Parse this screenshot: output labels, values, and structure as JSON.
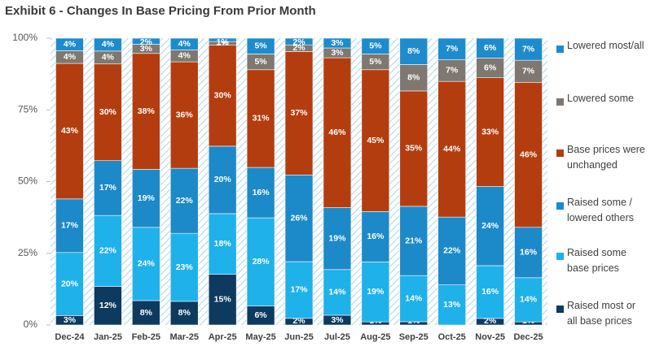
{
  "chart_data": {
    "type": "stacked_percent_bar",
    "title": "Exhibit 6 - Changes In Base Pricing From Prior Month",
    "normalize": true,
    "categories": [
      "Dec-24",
      "Jan-25",
      "Feb-25",
      "Mar-25",
      "Apr-25",
      "May-25",
      "Jun-25",
      "Jul-25",
      "Aug-25",
      "Sep-25",
      "Oct-25",
      "Nov-25",
      "Dec-25"
    ],
    "series": [
      {
        "name": "Raised most or all base prices",
        "color": "#0e3a5f",
        "values": [
          3,
          12,
          8,
          8,
          15,
          6,
          2,
          3,
          1,
          1,
          0,
          2,
          1
        ],
        "value_labels": [
          "3%",
          "12%",
          "8%",
          "8%",
          "15%",
          "6%",
          "2%",
          "3%",
          "1%",
          "1%",
          "0%",
          "2%",
          "1%"
        ]
      },
      {
        "name": "Raised some base prices",
        "color": "#1fb1ea",
        "values": [
          20,
          22,
          24,
          23,
          18,
          28,
          17,
          14,
          19,
          14,
          13,
          16,
          14
        ],
        "value_labels": [
          "20%",
          "22%",
          "24%",
          "23%",
          "18%",
          "28%",
          "17%",
          "14%",
          "19%",
          "14%",
          "13%",
          "16%",
          "14%"
        ]
      },
      {
        "name": "Raised some / lowered others",
        "color": "#1c89c9",
        "values": [
          17,
          17,
          19,
          22,
          20,
          16,
          26,
          19,
          16,
          21,
          22,
          24,
          16
        ],
        "value_labels": [
          "17%",
          "17%",
          "19%",
          "22%",
          "20%",
          "16%",
          "26%",
          "19%",
          "16%",
          "21%",
          "22%",
          "24%",
          "16%"
        ]
      },
      {
        "name": "Base prices were unchanged",
        "color": "#b43d0f",
        "values": [
          43,
          30,
          38,
          36,
          30,
          31,
          37,
          46,
          45,
          35,
          44,
          33,
          46
        ],
        "value_labels": [
          "43%",
          "30%",
          "38%",
          "36%",
          "30%",
          "31%",
          "37%",
          "46%",
          "45%",
          "35%",
          "44%",
          "33%",
          "46%"
        ]
      },
      {
        "name": "Lowered some",
        "color": "#7e7870",
        "values": [
          4,
          4,
          3,
          4,
          1,
          5,
          2,
          3,
          5,
          8,
          7,
          6,
          7
        ],
        "value_labels": [
          "4%",
          "4%",
          "3%",
          "4%",
          "1%",
          "5%",
          "2%",
          "3%",
          "5%",
          "8%",
          "7%",
          "6%",
          "7%"
        ]
      },
      {
        "name": "Lowered most/all",
        "color": "#1e8ccc",
        "values": [
          4,
          4,
          2,
          4,
          1,
          5,
          2,
          3,
          5,
          8,
          7,
          6,
          7
        ],
        "value_labels": [
          "4%",
          "4%",
          "2%",
          "4%",
          "1%",
          "5%",
          "2%",
          "3%",
          "5%",
          "8%",
          "7%",
          "6%",
          "7%"
        ]
      }
    ],
    "ylim": [
      0,
      100
    ],
    "yticks": [
      {
        "value": 0,
        "label": "0%"
      },
      {
        "value": 25,
        "label": "25%"
      },
      {
        "value": 50,
        "label": "50%"
      },
      {
        "value": 75,
        "label": "75%"
      },
      {
        "value": 100,
        "label": "100%"
      }
    ]
  }
}
